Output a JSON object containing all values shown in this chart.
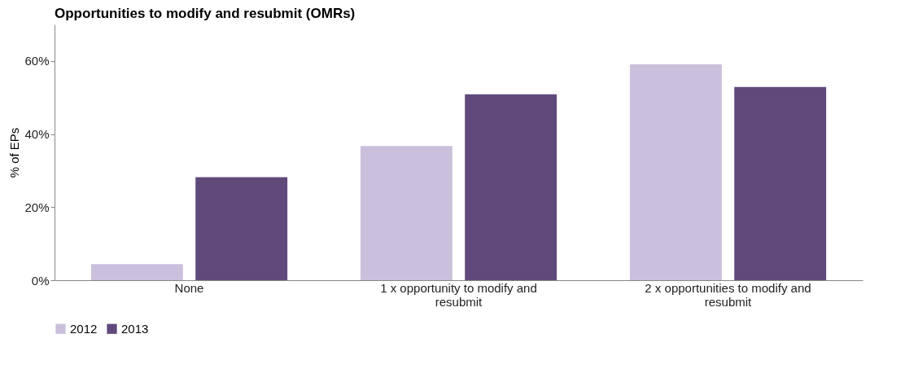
{
  "chart_data": {
    "type": "bar",
    "title": "Opportunities to modify and resubmit (OMRs)",
    "ylabel": "% of EPs",
    "categories": [
      "None",
      "1 x opportunity to modify and resubmit",
      "2 x opportunities to modify and resubmit"
    ],
    "series": [
      {
        "name": "2012",
        "color": "#cbc0dc",
        "values": [
          4.4,
          36.7,
          59.1
        ]
      },
      {
        "name": "2013",
        "color": "#604a7b",
        "values": [
          28.2,
          50.9,
          52.9
        ]
      }
    ],
    "ylim": [
      0,
      70
    ],
    "yticks": [
      {
        "value": 0,
        "label": "0%"
      },
      {
        "value": 20,
        "label": "20%"
      },
      {
        "value": 40,
        "label": "40%"
      },
      {
        "value": 60,
        "label": "60%"
      }
    ],
    "grid": false,
    "legend": "bottom left"
  }
}
